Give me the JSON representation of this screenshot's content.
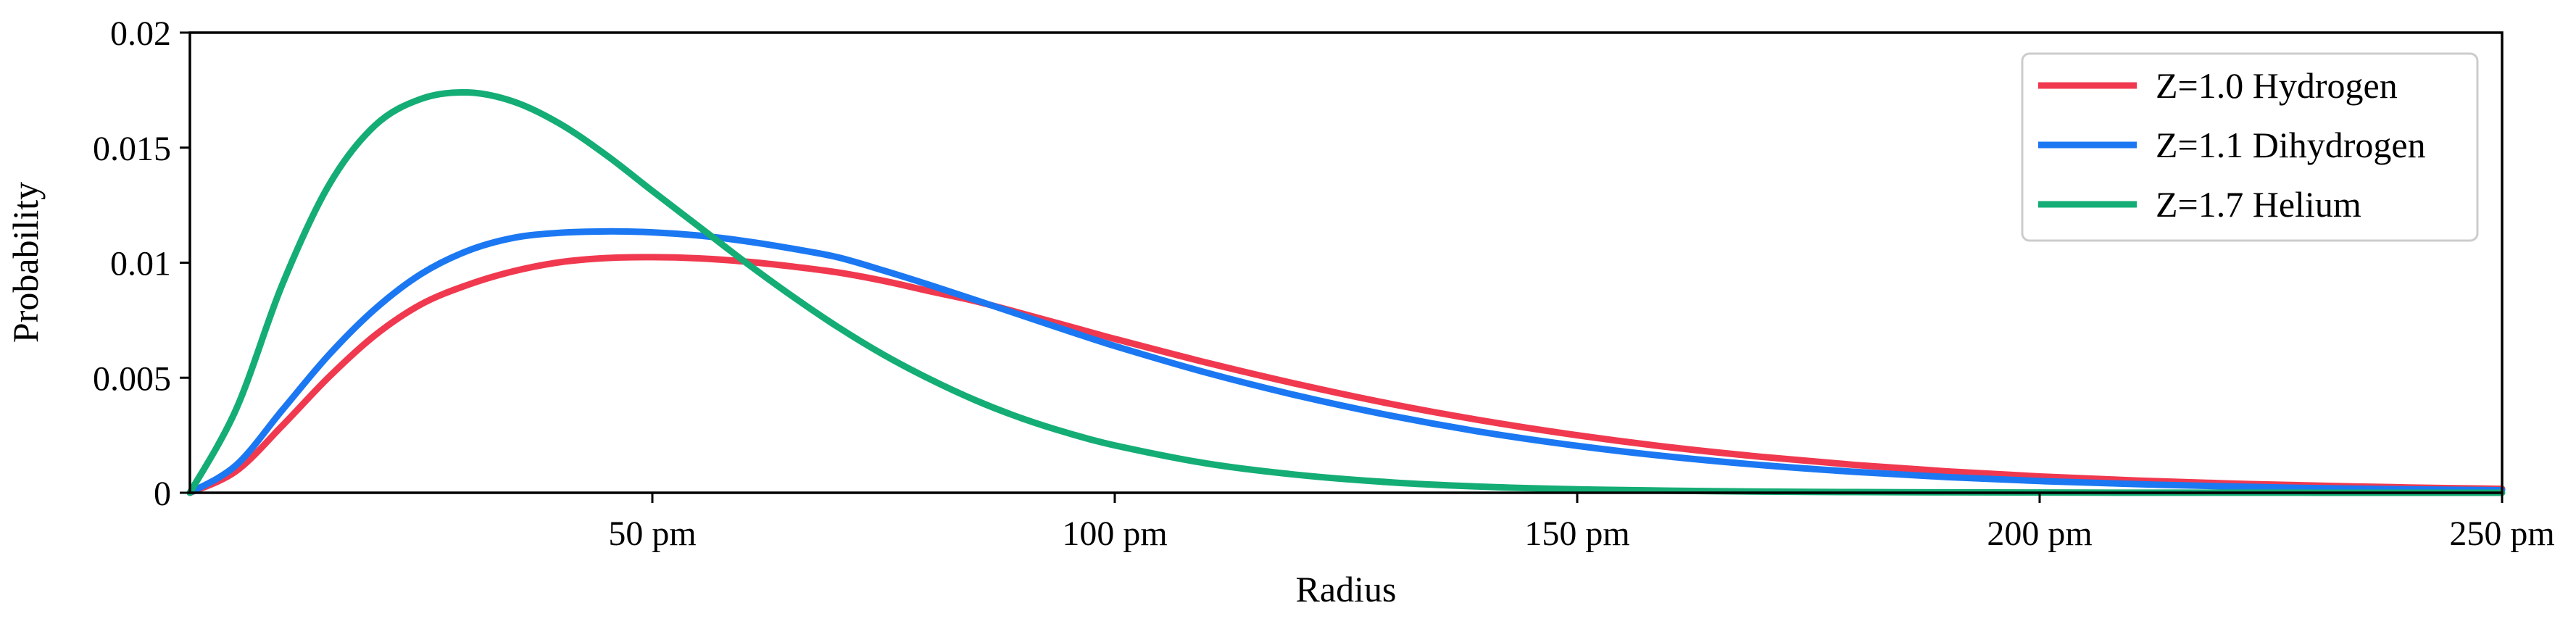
{
  "chart_data": {
    "type": "line",
    "xlabel": "Radius",
    "ylabel": "Probability",
    "xlim": [
      0,
      250
    ],
    "ylim": [
      0,
      0.02
    ],
    "x_unit": "pm",
    "xticks": [
      {
        "value": 50,
        "label": "50 pm"
      },
      {
        "value": 100,
        "label": "100 pm"
      },
      {
        "value": 150,
        "label": "150 pm"
      },
      {
        "value": 200,
        "label": "200 pm"
      },
      {
        "value": 250,
        "label": "250 pm"
      }
    ],
    "yticks": [
      {
        "value": 0,
        "label": "0"
      },
      {
        "value": 0.005,
        "label": "0.005"
      },
      {
        "value": 0.01,
        "label": "0.01"
      },
      {
        "value": 0.015,
        "label": "0.015"
      },
      {
        "value": 0.02,
        "label": "0.02"
      }
    ],
    "grid": false,
    "legend_position": "top-right",
    "x": [
      0,
      5,
      10,
      15,
      20,
      25,
      30,
      35,
      40,
      45,
      50,
      55,
      60,
      65,
      70,
      75,
      80,
      85,
      90,
      95,
      100,
      110,
      120,
      130,
      140,
      150,
      160,
      170,
      180,
      190,
      200,
      210,
      220,
      230,
      240,
      250
    ],
    "series": [
      {
        "name": "Z=1.0 Hydrogen",
        "color": "#f0394f",
        "values": [
          0,
          0.00094,
          0.00292,
          0.00502,
          0.00684,
          0.00819,
          0.00903,
          0.00963,
          0.01002,
          0.0102,
          0.01024,
          0.01019,
          0.01005,
          0.00984,
          0.00958,
          0.00921,
          0.00876,
          0.00832,
          0.00779,
          0.00724,
          0.00669,
          0.00565,
          0.0047,
          0.00385,
          0.00312,
          0.0025,
          0.00198,
          0.00156,
          0.00121,
          0.00093,
          0.00071,
          0.00054,
          0.00041,
          0.00031,
          0.00023,
          0.00017
        ]
      },
      {
        "name": "Z=1.1 Dihydrogen",
        "color": "#1b78f2",
        "values": [
          0,
          0.0012,
          0.0036,
          0.00598,
          0.00798,
          0.00951,
          0.01051,
          0.01108,
          0.0113,
          0.01136,
          0.01132,
          0.01118,
          0.01094,
          0.01062,
          0.01024,
          0.00966,
          0.00903,
          0.00837,
          0.0077,
          0.00703,
          0.00638,
          0.00521,
          0.0042,
          0.00334,
          0.00262,
          0.00204,
          0.00157,
          0.0012,
          0.00091,
          0.00068,
          0.00051,
          0.00038,
          0.00028,
          0.0002,
          0.00015,
          0.00011
        ]
      },
      {
        "name": "Z=1.7 Helium",
        "color": "#14ad75",
        "values": [
          0,
          0.00363,
          0.00906,
          0.01335,
          0.01596,
          0.01712,
          0.0174,
          0.017,
          0.01604,
          0.01468,
          0.01312,
          0.01158,
          0.01004,
          0.00858,
          0.00722,
          0.006,
          0.00494,
          0.00401,
          0.00323,
          0.00259,
          0.00206,
          0.00127,
          0.00077,
          0.00045,
          0.00026,
          0.00015,
          9e-05,
          5e-05,
          3e-05,
          2e-05,
          1e-05,
          5e-06,
          3e-06,
          2e-06,
          1e-06,
          5e-07
        ]
      }
    ]
  }
}
